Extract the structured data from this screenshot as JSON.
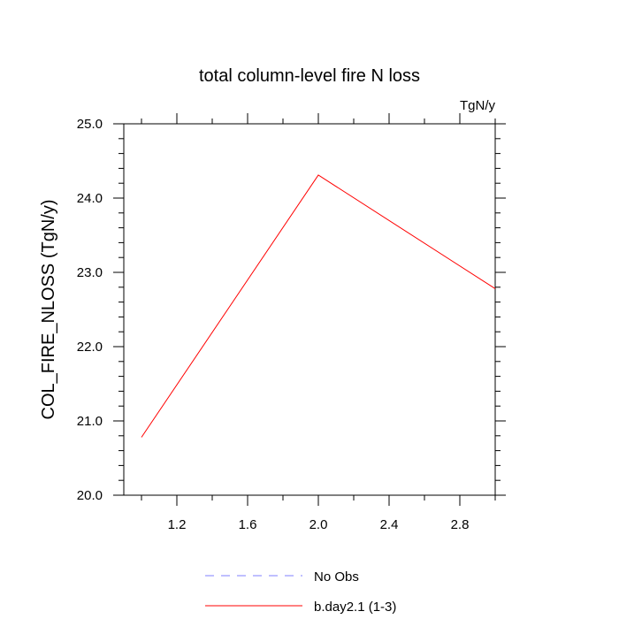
{
  "chart_data": {
    "type": "line",
    "title": "total column-level fire N loss",
    "units": "TgN/y",
    "xlabel": "",
    "ylabel": "COL_FIRE_NLOSS  (TgN/y)",
    "xlim": [
      0.9,
      3.0
    ],
    "ylim": [
      20.0,
      25.0
    ],
    "x_ticks": [
      "1.2",
      "1.6",
      "2.0",
      "2.4",
      "2.8"
    ],
    "y_ticks": [
      "20.0",
      "21.0",
      "22.0",
      "23.0",
      "24.0",
      "25.0"
    ],
    "series": [
      {
        "name": "b.day2.1 (1-3)",
        "color": "#ff0000",
        "dash": "solid",
        "x": [
          1.0,
          2.0,
          3.0
        ],
        "y": [
          20.78,
          24.31,
          22.78
        ]
      }
    ],
    "legend": {
      "placement": "bottom-center",
      "entries": [
        {
          "label": "No Obs",
          "color": "#8080ff",
          "dash": "dashed"
        },
        {
          "label": "b.day2.1 (1-3)",
          "color": "#ff0000",
          "dash": "solid"
        }
      ]
    }
  }
}
